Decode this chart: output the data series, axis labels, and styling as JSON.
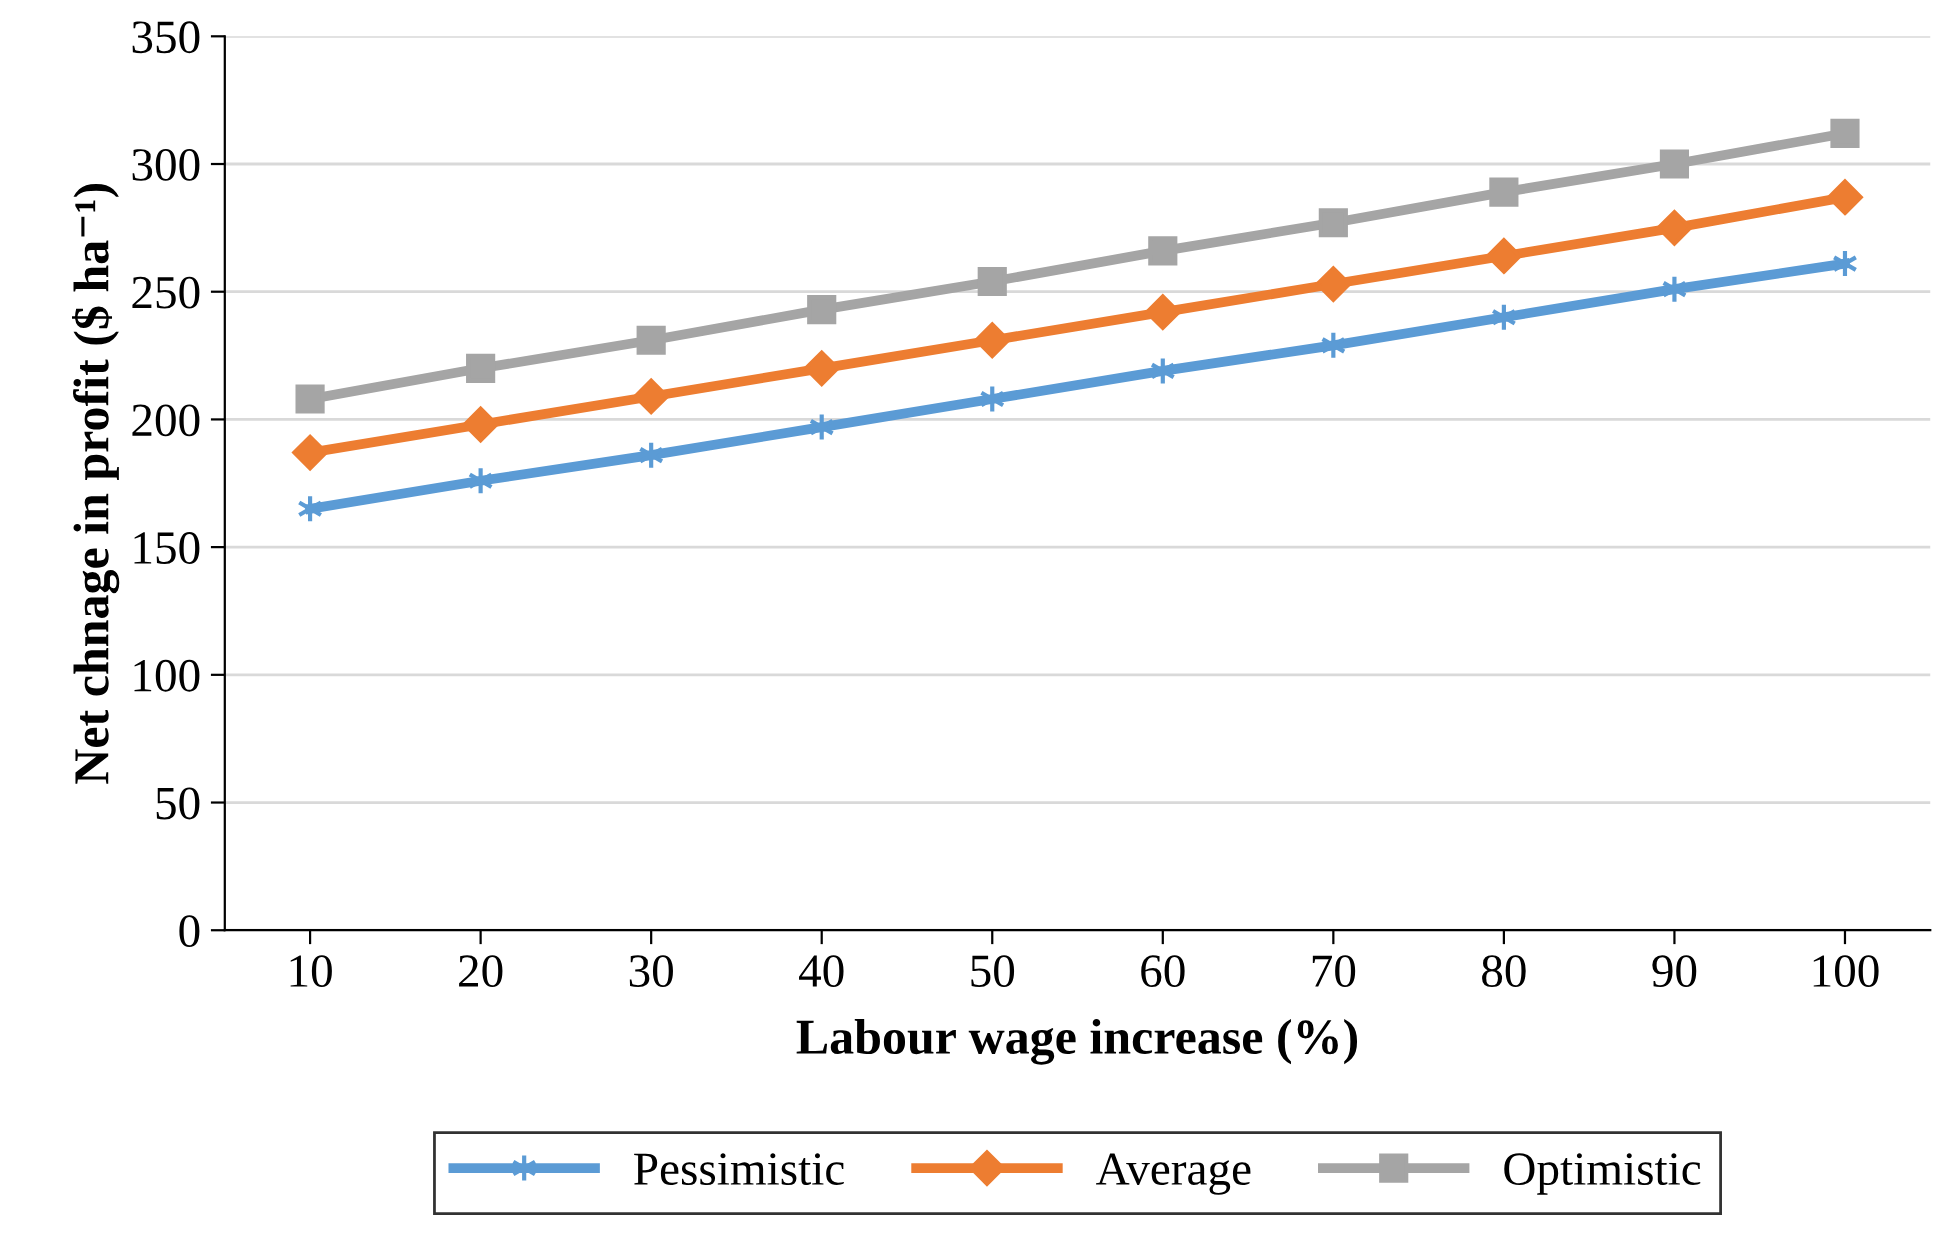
{
  "chart_data": {
    "type": "line",
    "xlabel": "Labour wage increase (%)",
    "ylabel": "Net chnage in profit ($ ha⁻¹)",
    "categories": [
      "10",
      "20",
      "30",
      "40",
      "50",
      "60",
      "70",
      "80",
      "90",
      "100"
    ],
    "series": [
      {
        "name": "Pessimistic",
        "color": "#5b9bd5",
        "marker": "cross",
        "values": [
          165,
          176,
          186,
          197,
          208,
          219,
          229,
          240,
          251,
          261
        ]
      },
      {
        "name": "Average",
        "color": "#ed7d31",
        "marker": "diamond",
        "values": [
          187,
          198,
          209,
          220,
          231,
          242,
          253,
          264,
          275,
          287
        ]
      },
      {
        "name": "Optimistic",
        "color": "#a5a5a5",
        "marker": "square",
        "values": [
          208,
          220,
          231,
          243,
          254,
          266,
          277,
          289,
          300,
          312
        ]
      }
    ],
    "ylim": [
      0,
      350
    ],
    "yticks": [
      0,
      50,
      100,
      150,
      200,
      250,
      300,
      350
    ],
    "grid": "y",
    "legend": "bottom",
    "line_style": "solid"
  }
}
